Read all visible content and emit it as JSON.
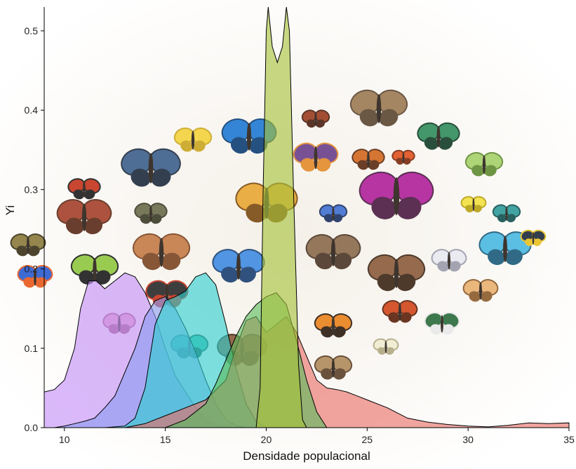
{
  "chart_data": {
    "type": "area",
    "title": "",
    "xlabel": "Densidade populacional",
    "ylabel": "Yi",
    "xlim": [
      9,
      35
    ],
    "ylim": [
      0,
      0.53
    ],
    "xticks": [
      "10",
      "15",
      "20",
      "25",
      "30",
      "35"
    ],
    "yticks": [
      "0.0",
      "0.1",
      "0.2",
      "0.3",
      "0.4",
      "0.5"
    ],
    "grid": false,
    "legend": "none",
    "background": "collage of butterflies, moths and insects",
    "series": [
      {
        "color": "#c48ef7",
        "points": [
          [
            9,
            0.045
          ],
          [
            9.5,
            0.048
          ],
          [
            10,
            0.06
          ],
          [
            10.5,
            0.1
          ],
          [
            10.8,
            0.15
          ],
          [
            11.2,
            0.185
          ],
          [
            11.6,
            0.185
          ],
          [
            12,
            0.175
          ],
          [
            12.5,
            0.185
          ],
          [
            13,
            0.195
          ],
          [
            13.5,
            0.19
          ],
          [
            14,
            0.17
          ],
          [
            14.5,
            0.14
          ],
          [
            15,
            0.1
          ],
          [
            15.5,
            0.065
          ],
          [
            16,
            0.045
          ],
          [
            16.5,
            0.025
          ],
          [
            17,
            0.01
          ],
          [
            17.5,
            0.004
          ],
          [
            18,
            0.001
          ],
          [
            19,
            0
          ]
        ]
      },
      {
        "color": "#8a9cf0",
        "points": [
          [
            9,
            0
          ],
          [
            9.5,
            0
          ],
          [
            10,
            0.002
          ],
          [
            10.5,
            0.005
          ],
          [
            11,
            0.008
          ],
          [
            11.5,
            0.012
          ],
          [
            12,
            0.025
          ],
          [
            12.5,
            0.04
          ],
          [
            13,
            0.07
          ],
          [
            13.5,
            0.1
          ],
          [
            14,
            0.14
          ],
          [
            14.5,
            0.16
          ],
          [
            15,
            0.165
          ],
          [
            15.5,
            0.15
          ],
          [
            16,
            0.125
          ],
          [
            16.5,
            0.095
          ],
          [
            17,
            0.06
          ],
          [
            17.5,
            0.03
          ],
          [
            18,
            0.01
          ],
          [
            18.5,
            0.003
          ],
          [
            19,
            0
          ]
        ]
      },
      {
        "color": "#2ecfcf",
        "points": [
          [
            12,
            0
          ],
          [
            13,
            0.002
          ],
          [
            13.5,
            0.012
          ],
          [
            14,
            0.05
          ],
          [
            14.5,
            0.13
          ],
          [
            15,
            0.16
          ],
          [
            15.5,
            0.165
          ],
          [
            16,
            0.172
          ],
          [
            16.5,
            0.19
          ],
          [
            17,
            0.195
          ],
          [
            17.5,
            0.18
          ],
          [
            18,
            0.13
          ],
          [
            18.5,
            0.075
          ],
          [
            19,
            0.03
          ],
          [
            19.5,
            0.008
          ],
          [
            20,
            0
          ]
        ]
      },
      {
        "color": "#e86e66",
        "points": [
          [
            9,
            0
          ],
          [
            13,
            0
          ],
          [
            14,
            0.005
          ],
          [
            15,
            0.015
          ],
          [
            16,
            0.025
          ],
          [
            17,
            0.035
          ],
          [
            18,
            0.06
          ],
          [
            18.5,
            0.1
          ],
          [
            19,
            0.135
          ],
          [
            19.5,
            0.14
          ],
          [
            20,
            0.12
          ],
          [
            20.5,
            0.13
          ],
          [
            21,
            0.14
          ],
          [
            21.5,
            0.12
          ],
          [
            22,
            0.09
          ],
          [
            22.5,
            0.06
          ],
          [
            23,
            0.05
          ],
          [
            23.5,
            0.048
          ],
          [
            24,
            0.045
          ],
          [
            24.5,
            0.04
          ],
          [
            25,
            0.035
          ],
          [
            26,
            0.025
          ],
          [
            27,
            0.012
          ],
          [
            28,
            0.007
          ],
          [
            29,
            0.004
          ],
          [
            30,
            0.002
          ],
          [
            31,
            0.001
          ],
          [
            32,
            0.003
          ],
          [
            33,
            0.006
          ],
          [
            34,
            0.005
          ],
          [
            35,
            0.006
          ]
        ]
      },
      {
        "color": "#5cbc5c",
        "points": [
          [
            15,
            0
          ],
          [
            16,
            0.01
          ],
          [
            17,
            0.03
          ],
          [
            17.5,
            0.055
          ],
          [
            18,
            0.085
          ],
          [
            18.5,
            0.115
          ],
          [
            19,
            0.14
          ],
          [
            19.5,
            0.155
          ],
          [
            20,
            0.165
          ],
          [
            20.5,
            0.17
          ],
          [
            21,
            0.155
          ],
          [
            21.5,
            0.11
          ],
          [
            22,
            0.06
          ],
          [
            22.5,
            0.02
          ],
          [
            23,
            0
          ]
        ]
      },
      {
        "color": "#a6c23a",
        "points": [
          [
            19.5,
            0
          ],
          [
            19.7,
            0.05
          ],
          [
            19.85,
            0.3
          ],
          [
            20,
            0.5
          ],
          [
            20.1,
            0.53
          ],
          [
            20.3,
            0.48
          ],
          [
            20.55,
            0.46
          ],
          [
            20.8,
            0.48
          ],
          [
            21,
            0.53
          ],
          [
            21.15,
            0.5
          ],
          [
            21.35,
            0.3
          ],
          [
            21.6,
            0.08
          ],
          [
            21.8,
            0.01
          ],
          [
            22,
            0
          ]
        ]
      }
    ]
  }
}
